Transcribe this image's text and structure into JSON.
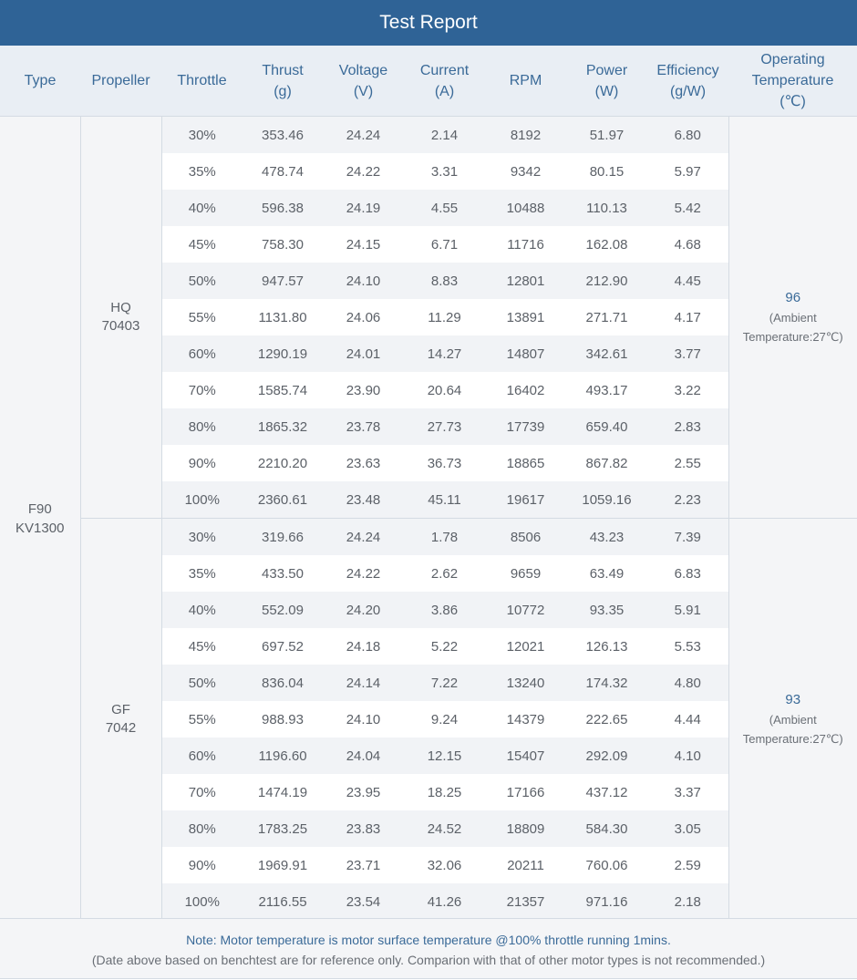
{
  "title": "Test Report",
  "headers": [
    {
      "l1": "Type",
      "l2": "",
      "l3": ""
    },
    {
      "l1": "Propeller",
      "l2": "",
      "l3": ""
    },
    {
      "l1": "Throttle",
      "l2": "",
      "l3": ""
    },
    {
      "l1": "Thrust",
      "l2": "(g)",
      "l3": ""
    },
    {
      "l1": "Voltage",
      "l2": "(V)",
      "l3": ""
    },
    {
      "l1": "Current",
      "l2": "(A)",
      "l3": ""
    },
    {
      "l1": "RPM",
      "l2": "",
      "l3": ""
    },
    {
      "l1": "Power",
      "l2": "(W)",
      "l3": ""
    },
    {
      "l1": "Efficiency",
      "l2": "(g/W)",
      "l3": ""
    },
    {
      "l1": "Operating",
      "l2": "Temperature",
      "l3": "(℃)"
    }
  ],
  "type": {
    "line1": "F90",
    "line2": "KV1300"
  },
  "groups": [
    {
      "propeller": {
        "line1": "HQ",
        "line2": "70403"
      },
      "temperature": {
        "value": "96",
        "note1": "(Ambient",
        "note2": "Temperature:27℃)"
      },
      "rows": [
        [
          "30%",
          "353.46",
          "24.24",
          "2.14",
          "8192",
          "51.97",
          "6.80"
        ],
        [
          "35%",
          "478.74",
          "24.22",
          "3.31",
          "9342",
          "80.15",
          "5.97"
        ],
        [
          "40%",
          "596.38",
          "24.19",
          "4.55",
          "10488",
          "110.13",
          "5.42"
        ],
        [
          "45%",
          "758.30",
          "24.15",
          "6.71",
          "11716",
          "162.08",
          "4.68"
        ],
        [
          "50%",
          "947.57",
          "24.10",
          "8.83",
          "12801",
          "212.90",
          "4.45"
        ],
        [
          "55%",
          "1131.80",
          "24.06",
          "11.29",
          "13891",
          "271.71",
          "4.17"
        ],
        [
          "60%",
          "1290.19",
          "24.01",
          "14.27",
          "14807",
          "342.61",
          "3.77"
        ],
        [
          "70%",
          "1585.74",
          "23.90",
          "20.64",
          "16402",
          "493.17",
          "3.22"
        ],
        [
          "80%",
          "1865.32",
          "23.78",
          "27.73",
          "17739",
          "659.40",
          "2.83"
        ],
        [
          "90%",
          "2210.20",
          "23.63",
          "36.73",
          "18865",
          "867.82",
          "2.55"
        ],
        [
          "100%",
          "2360.61",
          "23.48",
          "45.11",
          "19617",
          "1059.16",
          "2.23"
        ]
      ]
    },
    {
      "propeller": {
        "line1": "GF",
        "line2": "7042"
      },
      "temperature": {
        "value": "93",
        "note1": "(Ambient",
        "note2": "Temperature:27℃)"
      },
      "rows": [
        [
          "30%",
          "319.66",
          "24.24",
          "1.78",
          "8506",
          "43.23",
          "7.39"
        ],
        [
          "35%",
          "433.50",
          "24.22",
          "2.62",
          "9659",
          "63.49",
          "6.83"
        ],
        [
          "40%",
          "552.09",
          "24.20",
          "3.86",
          "10772",
          "93.35",
          "5.91"
        ],
        [
          "45%",
          "697.52",
          "24.18",
          "5.22",
          "12021",
          "126.13",
          "5.53"
        ],
        [
          "50%",
          "836.04",
          "24.14",
          "7.22",
          "13240",
          "174.32",
          "4.80"
        ],
        [
          "55%",
          "988.93",
          "24.10",
          "9.24",
          "14379",
          "222.65",
          "4.44"
        ],
        [
          "60%",
          "1196.60",
          "24.04",
          "12.15",
          "15407",
          "292.09",
          "4.10"
        ],
        [
          "70%",
          "1474.19",
          "23.95",
          "18.25",
          "17166",
          "437.12",
          "3.37"
        ],
        [
          "80%",
          "1783.25",
          "23.83",
          "24.52",
          "18809",
          "584.30",
          "3.05"
        ],
        [
          "90%",
          "1969.91",
          "23.71",
          "32.06",
          "20211",
          "760.06",
          "2.59"
        ],
        [
          "100%",
          "2116.55",
          "23.54",
          "41.26",
          "21357",
          "971.16",
          "2.18"
        ]
      ]
    }
  ],
  "note": {
    "line1": "Note: Motor temperature is motor surface temperature @100% throttle running 1mins.",
    "line2": "(Date above based on benchtest are for reference only. Comparion with that of other motor types is not recommended.)"
  },
  "colors": {
    "header_bar": "#2f6396",
    "header_row": "#e9eef4",
    "accent_text": "#3a6a98",
    "alt_row": "#f1f3f6"
  }
}
